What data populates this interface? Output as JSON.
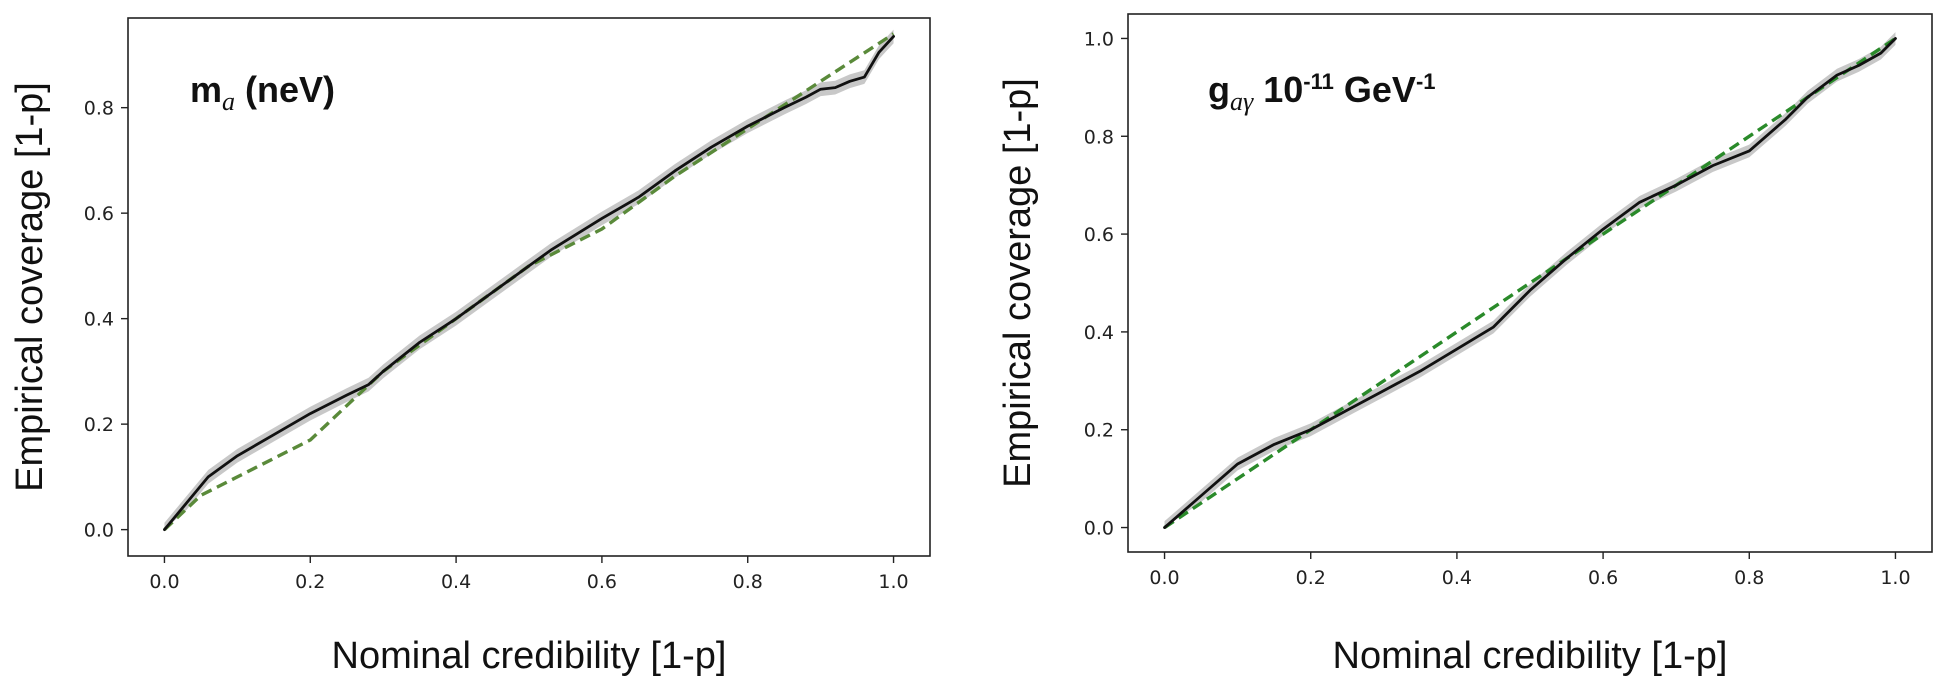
{
  "chart_data": [
    {
      "type": "line",
      "annotation": {
        "main": "m",
        "sub": "a",
        "rest": " (neV)"
      },
      "xlabel": "Nominal credibility [1-p]",
      "ylabel": "Empirical coverage [1-p]",
      "xlim": [
        -0.05,
        1.05
      ],
      "ylim": [
        -0.05,
        0.97
      ],
      "xticks": [
        "0.0",
        "0.2",
        "0.4",
        "0.6",
        "0.8",
        "1.0"
      ],
      "yticks": [
        "0.0",
        "0.2",
        "0.4",
        "0.6",
        "0.8"
      ],
      "grid": false,
      "colors": {
        "empirical": "#111111",
        "band": "#c8c8c8",
        "reference": "#5a8a3a"
      },
      "series": [
        {
          "role": "empirical",
          "x": [
            0.0,
            0.03,
            0.06,
            0.1,
            0.15,
            0.2,
            0.25,
            0.28,
            0.3,
            0.35,
            0.4,
            0.45,
            0.5,
            0.53,
            0.6,
            0.65,
            0.7,
            0.75,
            0.8,
            0.85,
            0.88,
            0.9,
            0.92,
            0.94,
            0.96,
            0.98,
            1.0
          ],
          "y": [
            0.0,
            0.05,
            0.1,
            0.14,
            0.18,
            0.22,
            0.255,
            0.275,
            0.3,
            0.355,
            0.4,
            0.45,
            0.5,
            0.53,
            0.59,
            0.63,
            0.68,
            0.725,
            0.765,
            0.8,
            0.82,
            0.835,
            0.838,
            0.85,
            0.858,
            0.905,
            0.935
          ]
        },
        {
          "role": "reference",
          "x": [
            0.0,
            0.05,
            0.1,
            0.2,
            0.3,
            0.4,
            0.5,
            0.6,
            0.7,
            0.8,
            0.9,
            1.0
          ],
          "y": [
            0.0,
            0.065,
            0.1,
            0.17,
            0.3,
            0.4,
            0.5,
            0.57,
            0.67,
            0.76,
            0.85,
            0.94
          ]
        }
      ]
    },
    {
      "type": "line",
      "annotation": {
        "main": "g",
        "sub": "aγ",
        "rest": " 10",
        "sup": "-11",
        "rest2": " GeV",
        "sup2": "-1"
      },
      "xlabel": "Nominal credibility [1-p]",
      "ylabel": "Empirical coverage [1-p]",
      "xlim": [
        -0.05,
        1.05
      ],
      "ylim": [
        -0.05,
        1.05
      ],
      "xticks": [
        "0.0",
        "0.2",
        "0.4",
        "0.6",
        "0.8",
        "1.0"
      ],
      "yticks": [
        "0.0",
        "0.2",
        "0.4",
        "0.6",
        "0.8",
        "1.0"
      ],
      "grid": false,
      "colors": {
        "empirical": "#111111",
        "band": "#c8c8c8",
        "reference": "#2a8a2a"
      },
      "series": [
        {
          "role": "empirical",
          "x": [
            0.0,
            0.05,
            0.1,
            0.15,
            0.2,
            0.25,
            0.3,
            0.35,
            0.4,
            0.45,
            0.5,
            0.55,
            0.6,
            0.65,
            0.7,
            0.75,
            0.8,
            0.85,
            0.88,
            0.92,
            0.95,
            0.98,
            1.0
          ],
          "y": [
            0.0,
            0.065,
            0.13,
            0.17,
            0.2,
            0.24,
            0.28,
            0.32,
            0.365,
            0.41,
            0.485,
            0.55,
            0.61,
            0.665,
            0.7,
            0.74,
            0.77,
            0.835,
            0.88,
            0.925,
            0.945,
            0.97,
            1.0
          ]
        },
        {
          "role": "reference",
          "x": [
            0.0,
            1.0
          ],
          "y": [
            0.0,
            1.0
          ]
        }
      ]
    }
  ]
}
